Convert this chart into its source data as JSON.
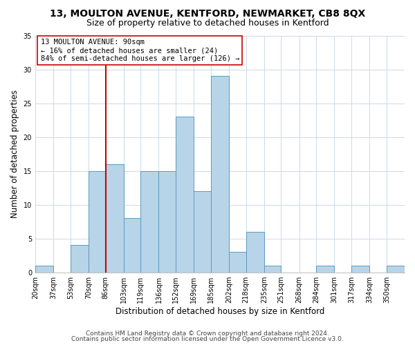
{
  "title": "13, MOULTON AVENUE, KENTFORD, NEWMARKET, CB8 8QX",
  "subtitle": "Size of property relative to detached houses in Kentford",
  "xlabel": "Distribution of detached houses by size in Kentford",
  "ylabel": "Number of detached properties",
  "bin_labels": [
    "20sqm",
    "37sqm",
    "53sqm",
    "70sqm",
    "86sqm",
    "103sqm",
    "119sqm",
    "136sqm",
    "152sqm",
    "169sqm",
    "185sqm",
    "202sqm",
    "218sqm",
    "235sqm",
    "251sqm",
    "268sqm",
    "284sqm",
    "301sqm",
    "317sqm",
    "334sqm",
    "350sqm"
  ],
  "bin_edges": [
    20,
    37,
    53,
    70,
    86,
    103,
    119,
    136,
    152,
    169,
    185,
    202,
    218,
    235,
    251,
    268,
    284,
    301,
    317,
    334,
    350,
    367
  ],
  "counts": [
    1,
    0,
    4,
    15,
    16,
    8,
    15,
    15,
    23,
    12,
    29,
    3,
    6,
    1,
    0,
    0,
    1,
    0,
    1,
    0,
    1
  ],
  "bar_color": "#b8d4e8",
  "bar_edgecolor": "#5a9abf",
  "vline_x": 86,
  "vline_color": "#cc0000",
  "annotation_text": "13 MOULTON AVENUE: 90sqm\n← 16% of detached houses are smaller (24)\n84% of semi-detached houses are larger (126) →",
  "annotation_box_edgecolor": "#cc0000",
  "annotation_box_facecolor": "#ffffff",
  "ylim": [
    0,
    35
  ],
  "yticks": [
    0,
    5,
    10,
    15,
    20,
    25,
    30,
    35
  ],
  "footer1": "Contains HM Land Registry data © Crown copyright and database right 2024.",
  "footer2": "Contains public sector information licensed under the Open Government Licence v3.0.",
  "background_color": "#ffffff",
  "grid_color": "#ccd9e8",
  "title_fontsize": 10,
  "subtitle_fontsize": 9,
  "axis_label_fontsize": 8.5,
  "tick_fontsize": 7,
  "annotation_fontsize": 7.5,
  "footer_fontsize": 6.5
}
